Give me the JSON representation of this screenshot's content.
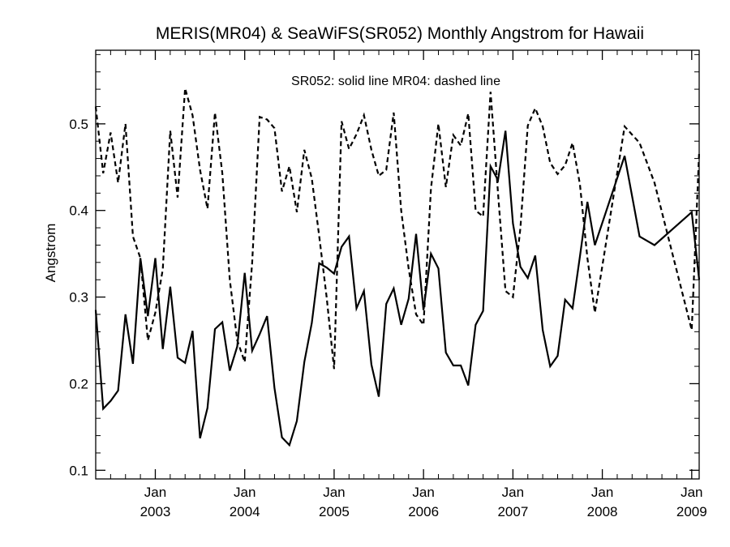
{
  "chart_data": {
    "type": "line",
    "title": "MERIS(MR04) & SeaWiFS(SR052) Monthly Angstrom for Hawaii",
    "ylabel": "Angstrom",
    "xlabel": "",
    "annotation": "SR052: solid line   MR04: dashed line",
    "ylim": [
      0.09,
      0.585
    ],
    "xlim": [
      "2002-05",
      "2009-02"
    ],
    "yticks": [
      0.1,
      0.2,
      0.3,
      0.4,
      0.5
    ],
    "ytick_labels": [
      "0.1",
      "0.2",
      "0.3",
      "0.4",
      "0.5"
    ],
    "xticks": [
      {
        "date": "2003-01",
        "month": "Jan",
        "year": "2003"
      },
      {
        "date": "2004-01",
        "month": "Jan",
        "year": "2004"
      },
      {
        "date": "2005-01",
        "month": "Jan",
        "year": "2005"
      },
      {
        "date": "2006-01",
        "month": "Jan",
        "year": "2006"
      },
      {
        "date": "2007-01",
        "month": "Jan",
        "year": "2007"
      },
      {
        "date": "2008-01",
        "month": "Jan",
        "year": "2008"
      },
      {
        "date": "2009-01",
        "month": "Jan",
        "year": "2009"
      }
    ],
    "grid": false,
    "series": [
      {
        "name": "SR052",
        "style": "solid",
        "color": "#000000",
        "points": [
          [
            "2002-05",
            0.285
          ],
          [
            "2002-06",
            0.171
          ],
          [
            "2002-07",
            0.18
          ],
          [
            "2002-08",
            0.192
          ],
          [
            "2002-09",
            0.28
          ],
          [
            "2002-10",
            0.223
          ],
          [
            "2002-11",
            0.345
          ],
          [
            "2002-12",
            0.278
          ],
          [
            "2003-01",
            0.345
          ],
          [
            "2003-02",
            0.24
          ],
          [
            "2003-03",
            0.312
          ],
          [
            "2003-04",
            0.23
          ],
          [
            "2003-05",
            0.224
          ],
          [
            "2003-06",
            0.261
          ],
          [
            "2003-07",
            0.137
          ],
          [
            "2003-08",
            0.172
          ],
          [
            "2003-09",
            0.263
          ],
          [
            "2003-10",
            0.271
          ],
          [
            "2003-11",
            0.215
          ],
          [
            "2003-12",
            0.243
          ],
          [
            "2004-01",
            0.328
          ],
          [
            "2004-02",
            0.238
          ],
          [
            "2004-03",
            0.257
          ],
          [
            "2004-04",
            0.278
          ],
          [
            "2004-05",
            0.195
          ],
          [
            "2004-06",
            0.138
          ],
          [
            "2004-07",
            0.129
          ],
          [
            "2004-08",
            0.157
          ],
          [
            "2004-09",
            0.225
          ],
          [
            "2004-10",
            0.27
          ],
          [
            "2004-11",
            0.339
          ],
          [
            "2004-12",
            0.334
          ],
          [
            "2005-01",
            0.327
          ],
          [
            "2005-02",
            0.358
          ],
          [
            "2005-03",
            0.37
          ],
          [
            "2005-04",
            0.287
          ],
          [
            "2005-05",
            0.307
          ],
          [
            "2005-06",
            0.222
          ],
          [
            "2005-07",
            0.185
          ],
          [
            "2005-08",
            0.292
          ],
          [
            "2005-09",
            0.31
          ],
          [
            "2005-10",
            0.268
          ],
          [
            "2005-11",
            0.298
          ],
          [
            "2005-12",
            0.373
          ],
          [
            "2006-01",
            0.285
          ],
          [
            "2006-02",
            0.35
          ],
          [
            "2006-03",
            0.333
          ],
          [
            "2006-04",
            0.236
          ],
          [
            "2006-05",
            0.221
          ],
          [
            "2006-06",
            0.221
          ],
          [
            "2006-07",
            0.198
          ],
          [
            "2006-08",
            0.268
          ],
          [
            "2006-09",
            0.284
          ],
          [
            "2006-10",
            0.451
          ],
          [
            "2006-11",
            0.435
          ],
          [
            "2006-12",
            0.492
          ],
          [
            "2007-01",
            0.385
          ],
          [
            "2007-02",
            0.335
          ],
          [
            "2007-03",
            0.322
          ],
          [
            "2007-04",
            0.348
          ],
          [
            "2007-05",
            0.262
          ],
          [
            "2007-06",
            0.22
          ],
          [
            "2007-07",
            0.232
          ],
          [
            "2007-08",
            0.297
          ],
          [
            "2007-09",
            0.287
          ],
          [
            "2007-10",
            0.347
          ],
          [
            "2007-11",
            0.41
          ],
          [
            "2007-12",
            0.36
          ],
          [
            "2008-04",
            0.463
          ],
          [
            "2008-06",
            0.37
          ],
          [
            "2008-08",
            0.36
          ],
          [
            "2009-01",
            0.398
          ],
          [
            "2009-02",
            0.32
          ]
        ]
      },
      {
        "name": "MR04",
        "style": "dashed",
        "color": "#000000",
        "points": [
          [
            "2002-05",
            0.52
          ],
          [
            "2002-06",
            0.443
          ],
          [
            "2002-07",
            0.49
          ],
          [
            "2002-08",
            0.432
          ],
          [
            "2002-09",
            0.5
          ],
          [
            "2002-10",
            0.37
          ],
          [
            "2002-11",
            0.345
          ],
          [
            "2002-12",
            0.25
          ],
          [
            "2003-01",
            0.282
          ],
          [
            "2003-02",
            0.332
          ],
          [
            "2003-03",
            0.492
          ],
          [
            "2003-04",
            0.415
          ],
          [
            "2003-05",
            0.541
          ],
          [
            "2003-06",
            0.51
          ],
          [
            "2003-07",
            0.447
          ],
          [
            "2003-08",
            0.402
          ],
          [
            "2003-09",
            0.513
          ],
          [
            "2003-10",
            0.443
          ],
          [
            "2003-11",
            0.32
          ],
          [
            "2003-12",
            0.25
          ],
          [
            "2004-01",
            0.225
          ],
          [
            "2004-02",
            0.34
          ],
          [
            "2004-03",
            0.508
          ],
          [
            "2004-04",
            0.505
          ],
          [
            "2004-05",
            0.495
          ],
          [
            "2004-06",
            0.422
          ],
          [
            "2004-07",
            0.451
          ],
          [
            "2004-08",
            0.398
          ],
          [
            "2004-09",
            0.47
          ],
          [
            "2004-10",
            0.437
          ],
          [
            "2004-11",
            0.37
          ],
          [
            "2004-12",
            0.3
          ],
          [
            "2005-01",
            0.217
          ],
          [
            "2005-02",
            0.503
          ],
          [
            "2005-03",
            0.471
          ],
          [
            "2005-04",
            0.488
          ],
          [
            "2005-05",
            0.51
          ],
          [
            "2005-06",
            0.47
          ],
          [
            "2005-07",
            0.44
          ],
          [
            "2005-08",
            0.447
          ],
          [
            "2005-09",
            0.513
          ],
          [
            "2005-10",
            0.4
          ],
          [
            "2005-11",
            0.333
          ],
          [
            "2005-12",
            0.28
          ],
          [
            "2006-01",
            0.268
          ],
          [
            "2006-02",
            0.425
          ],
          [
            "2006-03",
            0.5
          ],
          [
            "2006-04",
            0.427
          ],
          [
            "2006-05",
            0.487
          ],
          [
            "2006-06",
            0.475
          ],
          [
            "2006-07",
            0.512
          ],
          [
            "2006-08",
            0.4
          ],
          [
            "2006-09",
            0.393
          ],
          [
            "2006-10",
            0.537
          ],
          [
            "2006-11",
            0.42
          ],
          [
            "2006-12",
            0.307
          ],
          [
            "2007-01",
            0.3
          ],
          [
            "2007-02",
            0.38
          ],
          [
            "2007-03",
            0.498
          ],
          [
            "2007-04",
            0.518
          ],
          [
            "2007-05",
            0.497
          ],
          [
            "2007-06",
            0.455
          ],
          [
            "2007-07",
            0.442
          ],
          [
            "2007-08",
            0.452
          ],
          [
            "2007-09",
            0.478
          ],
          [
            "2007-10",
            0.43
          ],
          [
            "2007-11",
            0.345
          ],
          [
            "2007-12",
            0.282
          ],
          [
            "2008-04",
            0.497
          ],
          [
            "2008-06",
            0.478
          ],
          [
            "2008-08",
            0.432
          ],
          [
            "2009-01",
            0.262
          ],
          [
            "2009-02",
            0.468
          ]
        ]
      }
    ]
  }
}
